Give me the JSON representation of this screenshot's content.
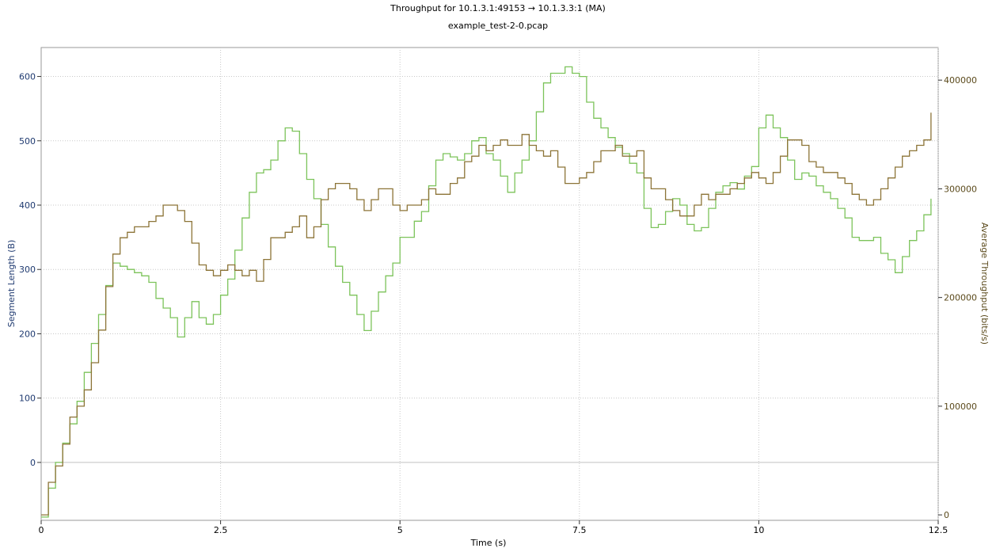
{
  "chart_data": {
    "type": "line",
    "title": "Throughput for 10.1.3.1:49153 → 10.1.3.3:1 (MA)",
    "subtitle": "example_test-2-0.pcap",
    "xlabel": "Time (s)",
    "ylabel_left": "Segment Length (B)",
    "ylabel_right": "Average Throughput (bits/s)",
    "xlim": [
      0,
      12.5
    ],
    "ylim_left": [
      -90,
      645
    ],
    "ylim_right": [
      -5000,
      430000
    ],
    "x_ticks": [
      0,
      2.5,
      5,
      7.5,
      10,
      12.5
    ],
    "x_tick_labels": [
      "0",
      "2.5",
      "5",
      "7.5",
      "10",
      "12.5"
    ],
    "y_left_ticks": [
      0,
      100,
      200,
      300,
      400,
      500,
      600
    ],
    "y_left_tick_labels": [
      "0",
      "100",
      "200",
      "300",
      "400",
      "500",
      "600"
    ],
    "y_right_ticks": [
      0,
      100000,
      200000,
      300000,
      400000
    ],
    "y_right_tick_labels": [
      "0",
      "100000",
      "200000",
      "300000",
      "400000"
    ],
    "grid": true,
    "colors": {
      "segment_length": "#7cc35a",
      "throughput": "#8c7437",
      "left_axis": "#1f3a70",
      "right_axis": "#5b4a1c",
      "grid": "#c8c8c8",
      "zero_line": "#c0c0c0"
    },
    "series": [
      {
        "axis": "left",
        "x": [
          0,
          0.1,
          0.2,
          0.3,
          0.4,
          0.5,
          0.6,
          0.7,
          0.8,
          0.9,
          1.0,
          1.1,
          1.2,
          1.3,
          1.4,
          1.5,
          1.6,
          1.7,
          1.8,
          1.9,
          2.0,
          2.1,
          2.2,
          2.3,
          2.4,
          2.5,
          2.6,
          2.7,
          2.8,
          2.9,
          3.0,
          3.1,
          3.2,
          3.3,
          3.4,
          3.5,
          3.6,
          3.7,
          3.8,
          3.9,
          4.0,
          4.1,
          4.2,
          4.3,
          4.4,
          4.5,
          4.6,
          4.7,
          4.8,
          4.9,
          5.0,
          5.1,
          5.2,
          5.3,
          5.4,
          5.5,
          5.6,
          5.7,
          5.8,
          5.9,
          6.0,
          6.1,
          6.2,
          6.3,
          6.4,
          6.5,
          6.6,
          6.7,
          6.8,
          6.9,
          7.0,
          7.1,
          7.2,
          7.3,
          7.4,
          7.5,
          7.6,
          7.7,
          7.8,
          7.9,
          8.0,
          8.1,
          8.2,
          8.3,
          8.4,
          8.5,
          8.6,
          8.7,
          8.8,
          8.9,
          9.0,
          9.1,
          9.2,
          9.3,
          9.4,
          9.5,
          9.6,
          9.7,
          9.8,
          9.9,
          10.0,
          10.1,
          10.2,
          10.3,
          10.4,
          10.5,
          10.6,
          10.7,
          10.8,
          10.9,
          11.0,
          11.1,
          11.2,
          11.3,
          11.4,
          11.5,
          11.6,
          11.7,
          11.8,
          11.9,
          12.0,
          12.1,
          12.2,
          12.3,
          12.4
        ],
        "values": [
          -85,
          -40,
          0,
          30,
          60,
          95,
          140,
          185,
          230,
          275,
          310,
          305,
          300,
          295,
          290,
          280,
          255,
          240,
          225,
          195,
          225,
          250,
          225,
          215,
          230,
          260,
          285,
          330,
          380,
          420,
          450,
          455,
          470,
          500,
          520,
          515,
          480,
          440,
          410,
          370,
          335,
          305,
          280,
          260,
          230,
          205,
          235,
          265,
          290,
          310,
          350,
          350,
          375,
          390,
          430,
          470,
          480,
          475,
          470,
          480,
          500,
          505,
          480,
          470,
          445,
          420,
          450,
          470,
          500,
          545,
          590,
          605,
          605,
          615,
          605,
          600,
          560,
          535,
          520,
          505,
          490,
          480,
          465,
          450,
          395,
          365,
          370,
          390,
          410,
          400,
          370,
          360,
          365,
          395,
          420,
          430,
          435,
          425,
          445,
          460,
          520,
          540,
          520,
          505,
          470,
          440,
          450,
          445,
          430,
          420,
          410,
          395,
          380,
          350,
          345,
          345,
          350,
          325,
          315,
          295,
          320,
          345,
          360,
          385,
          410
        ]
      },
      {
        "axis": "right",
        "x": [
          0,
          0.1,
          0.2,
          0.3,
          0.4,
          0.5,
          0.6,
          0.7,
          0.8,
          0.9,
          1.0,
          1.1,
          1.2,
          1.3,
          1.4,
          1.5,
          1.6,
          1.7,
          1.8,
          1.9,
          2.0,
          2.1,
          2.2,
          2.3,
          2.4,
          2.5,
          2.6,
          2.7,
          2.8,
          2.9,
          3.0,
          3.1,
          3.2,
          3.3,
          3.4,
          3.5,
          3.6,
          3.7,
          3.8,
          3.9,
          4.0,
          4.1,
          4.2,
          4.3,
          4.4,
          4.5,
          4.6,
          4.7,
          4.8,
          4.9,
          5.0,
          5.1,
          5.2,
          5.3,
          5.4,
          5.5,
          5.6,
          5.7,
          5.8,
          5.9,
          6.0,
          6.1,
          6.2,
          6.3,
          6.4,
          6.5,
          6.6,
          6.7,
          6.8,
          6.9,
          7.0,
          7.1,
          7.2,
          7.3,
          7.4,
          7.5,
          7.6,
          7.7,
          7.8,
          7.9,
          8.0,
          8.1,
          8.2,
          8.3,
          8.4,
          8.5,
          8.6,
          8.7,
          8.8,
          8.9,
          9.0,
          9.1,
          9.2,
          9.3,
          9.4,
          9.5,
          9.6,
          9.7,
          9.8,
          9.9,
          10.0,
          10.1,
          10.2,
          10.3,
          10.4,
          10.5,
          10.6,
          10.7,
          10.8,
          10.9,
          11.0,
          11.1,
          11.2,
          11.3,
          11.4,
          11.5,
          11.6,
          11.7,
          11.8,
          11.9,
          12.0,
          12.1,
          12.2,
          12.3,
          12.4
        ],
        "values": [
          0,
          30000,
          45000,
          65000,
          90000,
          100000,
          115000,
          140000,
          170000,
          210000,
          240000,
          255000,
          260000,
          265000,
          265000,
          270000,
          275000,
          285000,
          285000,
          280000,
          270000,
          250000,
          230000,
          225000,
          220000,
          225000,
          230000,
          225000,
          220000,
          225000,
          215000,
          235000,
          255000,
          255000,
          260000,
          265000,
          275000,
          255000,
          265000,
          290000,
          300000,
          305000,
          305000,
          300000,
          290000,
          280000,
          290000,
          300000,
          300000,
          285000,
          280000,
          285000,
          285000,
          290000,
          300000,
          295000,
          295000,
          305000,
          310000,
          325000,
          330000,
          340000,
          335000,
          340000,
          345000,
          340000,
          340000,
          350000,
          340000,
          335000,
          330000,
          335000,
          320000,
          305000,
          305000,
          310000,
          315000,
          325000,
          335000,
          335000,
          340000,
          330000,
          330000,
          335000,
          310000,
          300000,
          300000,
          290000,
          280000,
          275000,
          275000,
          285000,
          295000,
          290000,
          295000,
          295000,
          300000,
          305000,
          310000,
          315000,
          310000,
          305000,
          315000,
          330000,
          345000,
          345000,
          340000,
          325000,
          320000,
          315000,
          315000,
          310000,
          305000,
          295000,
          290000,
          285000,
          290000,
          300000,
          310000,
          320000,
          330000,
          335000,
          340000,
          345000,
          370000
        ]
      }
    ]
  }
}
